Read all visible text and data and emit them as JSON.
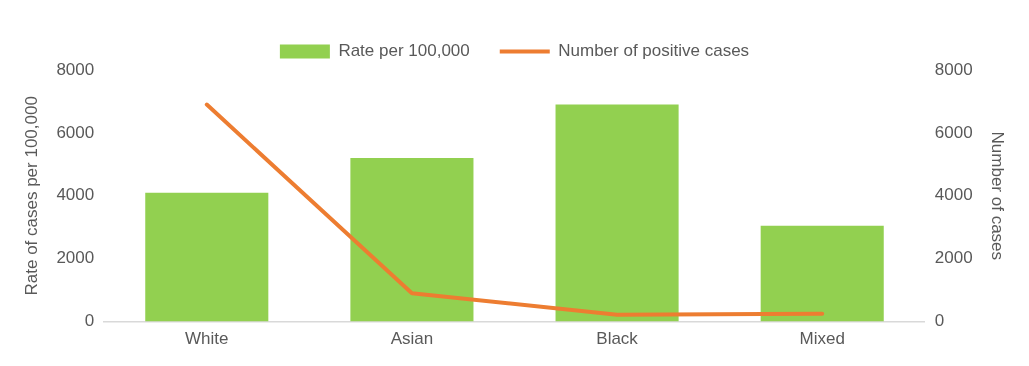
{
  "chart_data": {
    "type": "bar",
    "categories": [
      "White",
      "Asian",
      "Black",
      "Mixed"
    ],
    "ylabel": "Rate of cases per 100,000",
    "y2label": "Number of cases",
    "series": [
      {
        "name": "Rate per 100,000",
        "type": "bar",
        "color": "#92d050",
        "values": [
          4100,
          5200,
          6900,
          3050
        ]
      },
      {
        "name": "Number of positive cases",
        "type": "line",
        "axis": "y2",
        "color": "#ed7d31",
        "values": [
          6900,
          900,
          220,
          250
        ]
      }
    ],
    "ylim": [
      0,
      8000
    ],
    "yticks": [
      0,
      2000,
      4000,
      6000,
      8000
    ],
    "y2lim": [
      0,
      8000
    ],
    "y2ticks": [
      0,
      2000,
      4000,
      6000,
      8000
    ],
    "grid": false,
    "legend": "top",
    "marker": "none",
    "line_style": "solid"
  }
}
